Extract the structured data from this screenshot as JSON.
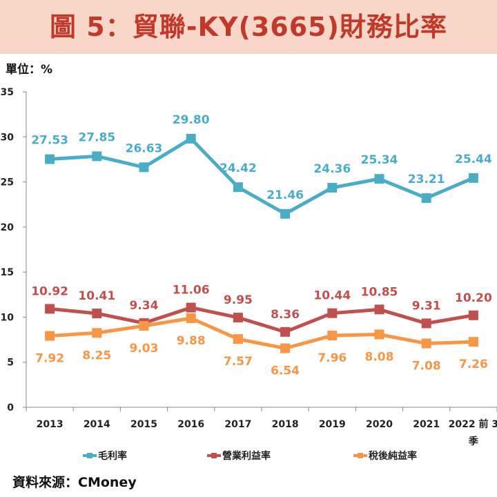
{
  "title": "圖 5：貿聯-KY(3665)財務比率",
  "unit": "單位：%",
  "source": "資料來源：CMoney",
  "chart_data": {
    "type": "line",
    "categories": [
      "2013",
      "2014",
      "2015",
      "2016",
      "2017",
      "2018",
      "2019",
      "2020",
      "2021",
      "2022 前 3 季"
    ],
    "ylim": [
      0,
      35
    ],
    "yticks": [
      0,
      5,
      10,
      15,
      20,
      25,
      30,
      35
    ],
    "grid": false,
    "legend_position": "bottom",
    "series": [
      {
        "name": "毛利率",
        "color": "#4bacc6",
        "values": [
          27.53,
          27.85,
          26.63,
          29.8,
          24.42,
          21.46,
          24.36,
          25.34,
          23.21,
          25.44
        ],
        "labels": [
          "27.53",
          "27.85",
          "26.63",
          "29.80",
          "24.42",
          "21.46",
          "24.36",
          "25.34",
          "23.21",
          "25.44"
        ]
      },
      {
        "name": "營業利益率",
        "color": "#c0504d",
        "values": [
          10.92,
          10.41,
          9.34,
          11.06,
          9.95,
          8.36,
          10.44,
          10.85,
          9.31,
          10.2
        ],
        "labels": [
          "10.92",
          "10.41",
          "9.34",
          "11.06",
          "9.95",
          "8.36",
          "10.44",
          "10.85",
          "9.31",
          "10.20"
        ]
      },
      {
        "name": "稅後純益率",
        "color": "#f79646",
        "values": [
          7.92,
          8.25,
          9.03,
          9.88,
          7.57,
          6.54,
          7.96,
          8.08,
          7.08,
          7.26
        ],
        "labels": [
          "7.92",
          "8.25",
          "9.03",
          "9.88",
          "7.57",
          "6.54",
          "7.96",
          "8.08",
          "7.08",
          "7.26"
        ]
      }
    ]
  }
}
